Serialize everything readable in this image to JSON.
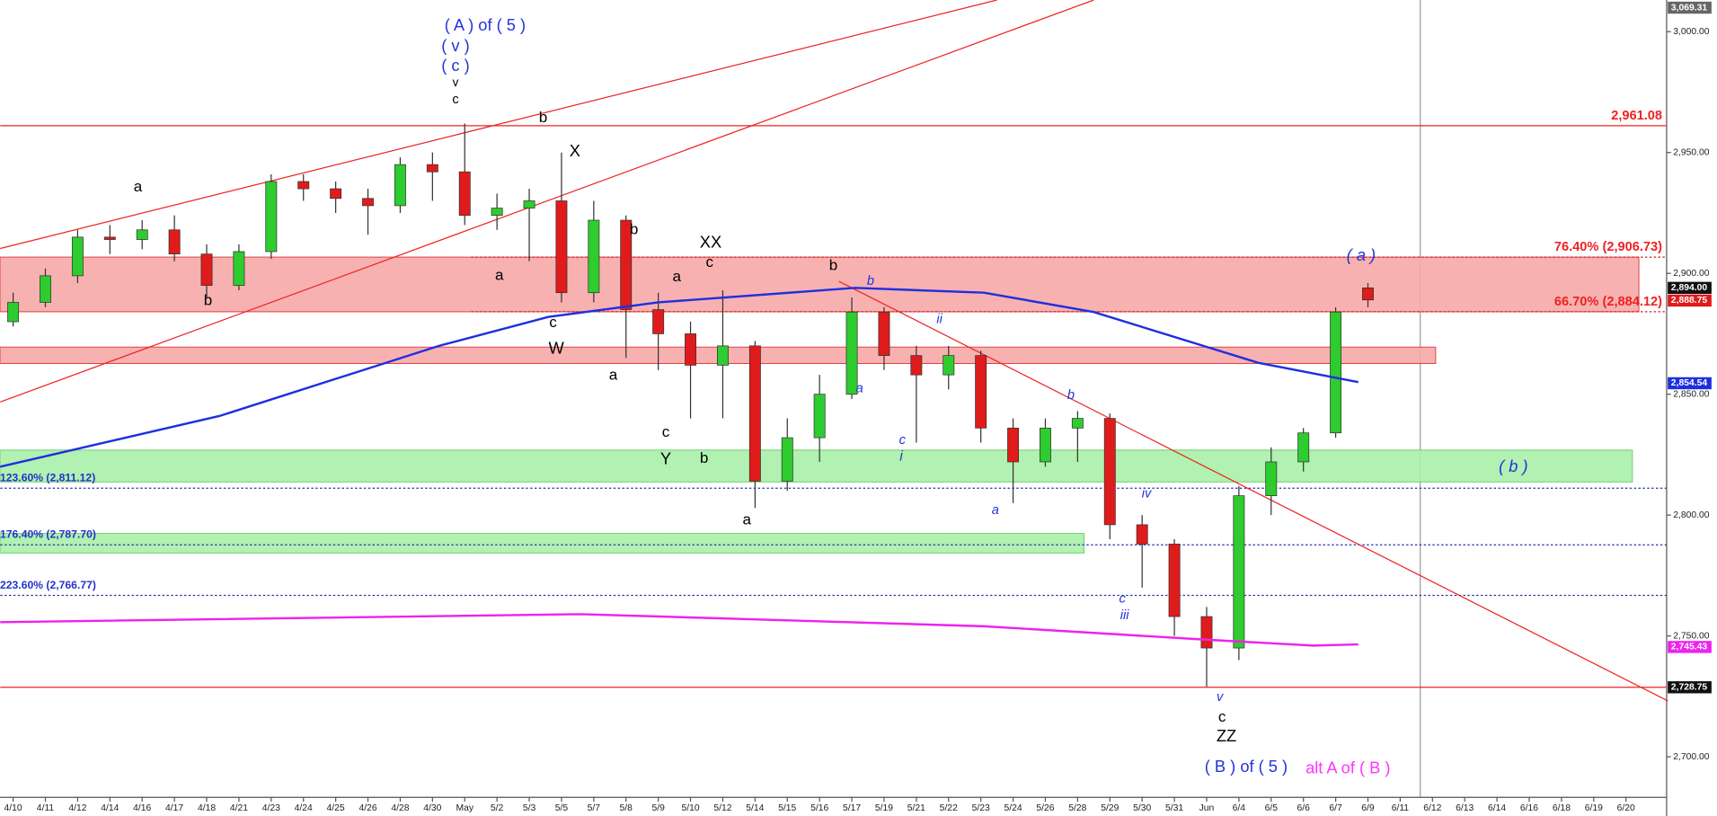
{
  "chart_data": {
    "type": "candlestick",
    "x": [
      0,
      1,
      2,
      3,
      4,
      5,
      6,
      7,
      8,
      9,
      10,
      11,
      12,
      13,
      14,
      15,
      16,
      17,
      18,
      19,
      20,
      21,
      22,
      23,
      24,
      25,
      26,
      27,
      28,
      29,
      30,
      31,
      32,
      33,
      34,
      35,
      36,
      37,
      38,
      39,
      40,
      41,
      42
    ],
    "open": [
      2880,
      2888,
      2899,
      2915,
      2914,
      2918,
      2908,
      2895,
      2909,
      2938,
      2935,
      2931,
      2928,
      2945,
      2942,
      2924,
      2927,
      2930,
      2892,
      2922,
      2885,
      2875,
      2862,
      2870,
      2814,
      2832,
      2850,
      2884,
      2866,
      2858,
      2866,
      2836,
      2822,
      2836,
      2840,
      2796,
      2788,
      2758,
      2745,
      2808,
      2822,
      2834,
      2894
    ],
    "high": [
      2892,
      2902,
      2918,
      2920,
      2922,
      2924,
      2912,
      2912,
      2941,
      2941,
      2938,
      2935,
      2948,
      2950,
      2962,
      2933,
      2935,
      2950,
      2930,
      2924,
      2892,
      2880,
      2893,
      2872,
      2840,
      2858,
      2890,
      2886,
      2870,
      2870,
      2868,
      2840,
      2840,
      2843,
      2842,
      2800,
      2790,
      2762,
      2812,
      2828,
      2836,
      2886,
      2896
    ],
    "low": [
      2878,
      2886,
      2896,
      2908,
      2910,
      2905,
      2890,
      2893,
      2906,
      2930,
      2925,
      2916,
      2925,
      2930,
      2920,
      2918,
      2905,
      2888,
      2888,
      2865,
      2860,
      2840,
      2840,
      2803,
      2810,
      2822,
      2848,
      2860,
      2830,
      2852,
      2830,
      2805,
      2820,
      2822,
      2790,
      2770,
      2750,
      2729,
      2740,
      2800,
      2818,
      2832,
      2886
    ],
    "close": [
      2888,
      2899,
      2915,
      2914,
      2918,
      2908,
      2895,
      2909,
      2938,
      2935,
      2931,
      2928,
      2945,
      2942,
      2924,
      2927,
      2930,
      2892,
      2922,
      2885,
      2875,
      2862,
      2870,
      2814,
      2832,
      2850,
      2884,
      2866,
      2858,
      2866,
      2836,
      2822,
      2836,
      2840,
      2796,
      2788,
      2758,
      2745,
      2808,
      2822,
      2834,
      2884,
      2889
    ],
    "up_color": "#2ecc2e",
    "down_color": "#e01b1b",
    "xlim": [
      -0.407,
      51.26
    ],
    "ylim": [
      2683.2,
      3013.1
    ],
    "xticks": [
      {
        "value": 0,
        "label": "4/10"
      },
      {
        "value": 1,
        "label": "4/11"
      },
      {
        "value": 2,
        "label": "4/12"
      },
      {
        "value": 3,
        "label": "4/14"
      },
      {
        "value": 4,
        "label": "4/16"
      },
      {
        "value": 5,
        "label": "4/17"
      },
      {
        "value": 6,
        "label": "4/18"
      },
      {
        "value": 7,
        "label": "4/21"
      },
      {
        "value": 8,
        "label": "4/23"
      },
      {
        "value": 9,
        "label": "4/24"
      },
      {
        "value": 10,
        "label": "4/25"
      },
      {
        "value": 11,
        "label": "4/26"
      },
      {
        "value": 12,
        "label": "4/28"
      },
      {
        "value": 13,
        "label": "4/30"
      },
      {
        "value": 14,
        "label": "May"
      },
      {
        "value": 15,
        "label": "5/2"
      },
      {
        "value": 16,
        "label": "5/3"
      },
      {
        "value": 17,
        "label": "5/5"
      },
      {
        "value": 18,
        "label": "5/7"
      },
      {
        "value": 19,
        "label": "5/8"
      },
      {
        "value": 20,
        "label": "5/9"
      },
      {
        "value": 21,
        "label": "5/10"
      },
      {
        "value": 22,
        "label": "5/12"
      },
      {
        "value": 23,
        "label": "5/14"
      },
      {
        "value": 24,
        "label": "5/15"
      },
      {
        "value": 25,
        "label": "5/16"
      },
      {
        "value": 26,
        "label": "5/17"
      },
      {
        "value": 27,
        "label": "5/19"
      },
      {
        "value": 28,
        "label": "5/21"
      },
      {
        "value": 29,
        "label": "5/22"
      },
      {
        "value": 30,
        "label": "5/23"
      },
      {
        "value": 31,
        "label": "5/24"
      },
      {
        "value": 32,
        "label": "5/26"
      },
      {
        "value": 33,
        "label": "5/28"
      },
      {
        "value": 34,
        "label": "5/29"
      },
      {
        "value": 35,
        "label": "5/30"
      },
      {
        "value": 36,
        "label": "5/31"
      },
      {
        "value": 37,
        "label": "Jun"
      },
      {
        "value": 38,
        "label": "6/4"
      },
      {
        "value": 39,
        "label": "6/5"
      },
      {
        "value": 40,
        "label": "6/6"
      },
      {
        "value": 41,
        "label": "6/7"
      },
      {
        "value": 42,
        "label": "6/9"
      },
      {
        "value": 43,
        "label": "6/11"
      },
      {
        "value": 44,
        "label": "6/12"
      },
      {
        "value": 45,
        "label": "6/13"
      },
      {
        "value": 46,
        "label": "6/14"
      },
      {
        "value": 47,
        "label": "6/16"
      },
      {
        "value": 48,
        "label": "6/18"
      },
      {
        "value": 49,
        "label": "6/19"
      },
      {
        "value": 50,
        "label": "6/20"
      }
    ],
    "yticks": [
      {
        "value": 2700,
        "label": "2,700.00"
      },
      {
        "value": 2750,
        "label": "2,750.00"
      },
      {
        "value": 2800,
        "label": "2,800.00"
      },
      {
        "value": 2850,
        "label": "2,850.00"
      },
      {
        "value": 2900,
        "label": "2,900.00"
      },
      {
        "value": 2950,
        "label": "2,950.00"
      },
      {
        "value": 3000,
        "label": "3,000.00"
      }
    ],
    "zones": [
      {
        "low": 2884.12,
        "high": 2906.73,
        "x_end": 50.4,
        "color": "#f7a8a8"
      },
      {
        "low": 2862.7,
        "high": 2869.5,
        "x_end": 44.1,
        "color": "#f7a8a8"
      },
      {
        "low": 2813.7,
        "high": 2826.9,
        "x_end": 50.2,
        "color": "#a8f0a8"
      },
      {
        "low": 2784.3,
        "high": 2792.4,
        "x_end": 33.2,
        "color": "#a8f0a8"
      }
    ],
    "moving_averages": [
      {
        "color": "#1f2fe0",
        "x": [
          -0.4,
          6.4,
          13.2,
          16.6,
          20,
          26.1,
          30.1,
          33.5,
          36.9,
          38.6,
          41.7
        ],
        "values": [
          2820,
          2841,
          2870,
          2882,
          2888,
          2894,
          2892,
          2884,
          2870,
          2863,
          2855
        ]
      },
      {
        "color": "#ee22ee",
        "x": [
          -0.4,
          17.6,
          30.1,
          36.9,
          40.3,
          41.7
        ],
        "values": [
          2755.7,
          2759,
          2754,
          2748.5,
          2746,
          2746.5
        ]
      }
    ],
    "trend_lines": [
      {
        "x": [
          -0.4,
          30.5
        ],
        "values": [
          2910.3,
          3013.1
        ],
        "color": "#ee2222"
      },
      {
        "x": [
          -0.4,
          33.5
        ],
        "values": [
          2846.8,
          3013.1
        ],
        "color": "#ee2222"
      },
      {
        "x": [
          25.6,
          51.3
        ],
        "values": [
          2896.7,
          2723.1
        ],
        "color": "#ee2222"
      }
    ],
    "levels": [
      {
        "value": 2961.08,
        "color": "#ee2222",
        "x_start": -0.4,
        "dash": false
      },
      {
        "value": 2728.75,
        "color": "#ee2222",
        "x_start": -0.4,
        "dash": false
      },
      {
        "value": 2906.73,
        "color": "#cc2222",
        "x_start": 14.2,
        "dash": true
      },
      {
        "value": 2884.12,
        "color": "#cc2222",
        "x_start": 14.2,
        "dash": true
      },
      {
        "value": 2811.12,
        "color": "#2233aa",
        "x_start": -0.4,
        "dash": true
      },
      {
        "value": 2787.7,
        "color": "#2233aa",
        "x_start": -0.4,
        "dash": true
      },
      {
        "value": 2766.77,
        "color": "#2233aa",
        "x_start": -0.4,
        "dash": true
      }
    ],
    "fib_labels": [
      {
        "value": 2961.08,
        "label": "2,961.08",
        "color": "#ee2222",
        "side": "right"
      },
      {
        "value": 2906.73,
        "label": "76.40% (2,906.73)",
        "color": "#ee2222",
        "side": "right"
      },
      {
        "value": 2884.12,
        "label": "66.70% (2,884.12)",
        "color": "#ee2222",
        "side": "right"
      },
      {
        "value": 2811.12,
        "label": "123.60% (2,811.12)",
        "color": "#2233cc",
        "side": "left"
      },
      {
        "value": 2787.7,
        "label": "176.40% (2,787.70)",
        "color": "#2233cc",
        "side": "left"
      },
      {
        "value": 2766.77,
        "label": "223.60% (2,766.77)",
        "color": "#2233cc",
        "side": "left"
      }
    ],
    "price_tags": [
      {
        "value": 3069.31,
        "label": "3,069.31",
        "color": "#666666"
      },
      {
        "value": 2894.0,
        "label": "2,894.00",
        "color": "#111111"
      },
      {
        "value": 2888.75,
        "label": "2,888.75",
        "color": "#e01b1b"
      },
      {
        "value": 2854.54,
        "label": "2,854.54",
        "color": "#1f2fe0"
      },
      {
        "value": 2745.43,
        "label": "2,745.43",
        "color": "#ee22ee"
      },
      {
        "value": 2728.75,
        "label": "2,728.75",
        "color": "#111111"
      }
    ],
    "annotations": [
      "( A ) of ( 5 )",
      "( v )",
      "( c )",
      "v",
      "c",
      "a",
      "b",
      "b",
      "X",
      "b",
      "XX",
      "c",
      "a",
      "a",
      "c",
      "W",
      "a",
      "c",
      "Y",
      "b",
      "a",
      "b",
      "b",
      "ii",
      "a",
      "c",
      "i",
      "a",
      "b",
      "iv",
      "c",
      "iii",
      "v",
      "c",
      "ZZ",
      "( B ) of ( 5 )",
      "alt A of ( B )",
      "( a )",
      "( b )"
    ]
  }
}
